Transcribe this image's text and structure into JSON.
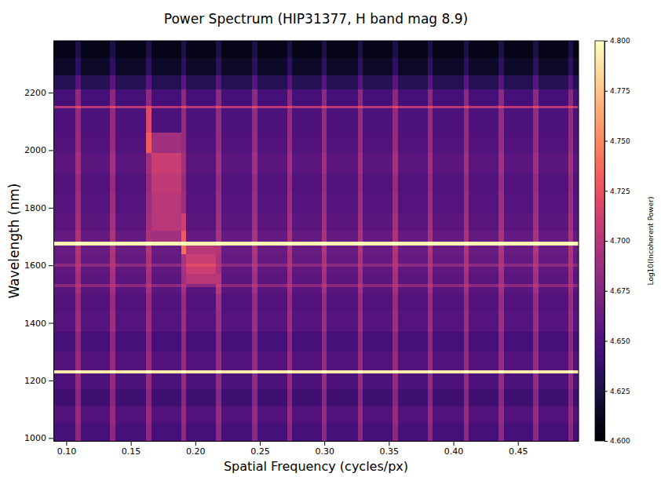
{
  "chart_data": {
    "type": "heatmap",
    "title": "Power Spectrum (HIP31377, H band mag 8.9)",
    "x_label": "Spatial Frequency (cycles/px)",
    "y_label": "Wavelength (nm)",
    "color": "magma",
    "grid": false,
    "xlim": [
      0.09,
      0.497
    ],
    "ylim": [
      990,
      2380
    ],
    "xticks": [
      {
        "value": 0.1,
        "label": "0.10"
      },
      0.15,
      {
        "value": 0.2,
        "label": "0.20"
      },
      0.25,
      {
        "value": 0.3,
        "label": "0.30"
      },
      0.35,
      {
        "value": 0.4,
        "label": "0.40"
      },
      0.45
    ],
    "yticks": [
      1000,
      1200,
      1400,
      1600,
      1800,
      2000,
      2200
    ],
    "x_edges": [
      0.09,
      0.107,
      0.111,
      0.134,
      0.138,
      0.162,
      0.166,
      0.189,
      0.193,
      0.216,
      0.22,
      0.244,
      0.248,
      0.271,
      0.275,
      0.298,
      0.302,
      0.326,
      0.33,
      0.353,
      0.357,
      0.38,
      0.384,
      0.408,
      0.412,
      0.435,
      0.439,
      0.462,
      0.466,
      0.489,
      0.493,
      0.497
    ],
    "y_edges": [
      990,
      1050,
      1110,
      1170,
      1225,
      1235,
      1300,
      1370,
      1440,
      1500,
      1525,
      1535,
      1570,
      1595,
      1605,
      1640,
      1668,
      1682,
      1720,
      1780,
      1850,
      1920,
      1990,
      2060,
      2145,
      2155,
      2210,
      2260,
      2320,
      2380
    ],
    "z": [
      [
        4.645,
        4.68,
        4.645,
        4.68,
        4.645,
        4.68,
        4.645,
        4.68,
        4.645,
        4.68,
        4.645,
        4.68,
        4.645,
        4.68,
        4.645,
        4.68,
        4.645,
        4.68,
        4.645,
        4.68,
        4.645,
        4.68,
        4.645,
        4.68,
        4.645,
        4.68,
        4.645,
        4.68,
        4.645,
        4.68,
        4.645
      ],
      [
        4.65,
        4.685,
        4.65,
        4.685,
        4.65,
        4.685,
        4.65,
        4.685,
        4.65,
        4.685,
        4.65,
        4.685,
        4.65,
        4.685,
        4.65,
        4.685,
        4.65,
        4.685,
        4.65,
        4.685,
        4.65,
        4.685,
        4.65,
        4.685,
        4.65,
        4.685,
        4.65,
        4.685,
        4.65,
        4.685,
        4.65
      ],
      [
        4.642,
        4.677,
        4.642,
        4.677,
        4.642,
        4.677,
        4.642,
        4.677,
        4.642,
        4.677,
        4.642,
        4.677,
        4.642,
        4.677,
        4.642,
        4.677,
        4.642,
        4.677,
        4.642,
        4.677,
        4.642,
        4.677,
        4.642,
        4.677,
        4.642,
        4.677,
        4.642,
        4.677,
        4.642,
        4.677,
        4.642
      ],
      [
        4.648,
        4.683,
        4.648,
        4.683,
        4.648,
        4.683,
        4.648,
        4.683,
        4.648,
        4.683,
        4.648,
        4.683,
        4.648,
        4.683,
        4.648,
        4.683,
        4.648,
        4.683,
        4.648,
        4.683,
        4.648,
        4.683,
        4.648,
        4.683,
        4.648,
        4.683,
        4.648,
        4.683,
        4.648,
        4.683,
        4.648
      ],
      [
        4.79,
        4.8,
        4.79,
        4.8,
        4.79,
        4.8,
        4.79,
        4.8,
        4.79,
        4.8,
        4.79,
        4.8,
        4.79,
        4.8,
        4.79,
        4.8,
        4.79,
        4.8,
        4.79,
        4.8,
        4.79,
        4.8,
        4.79,
        4.8,
        4.79,
        4.8,
        4.79,
        4.8,
        4.79,
        4.8,
        4.79
      ],
      [
        4.65,
        4.685,
        4.65,
        4.685,
        4.65,
        4.685,
        4.65,
        4.685,
        4.65,
        4.685,
        4.65,
        4.685,
        4.65,
        4.685,
        4.65,
        4.685,
        4.65,
        4.685,
        4.65,
        4.685,
        4.65,
        4.685,
        4.65,
        4.685,
        4.65,
        4.685,
        4.65,
        4.685,
        4.65,
        4.685,
        4.65
      ],
      [
        4.645,
        4.68,
        4.645,
        4.68,
        4.645,
        4.68,
        4.645,
        4.68,
        4.645,
        4.68,
        4.645,
        4.68,
        4.645,
        4.68,
        4.645,
        4.68,
        4.645,
        4.68,
        4.645,
        4.68,
        4.645,
        4.68,
        4.645,
        4.68,
        4.645,
        4.68,
        4.645,
        4.68,
        4.645,
        4.68,
        4.645
      ],
      [
        4.652,
        4.687,
        4.652,
        4.687,
        4.652,
        4.687,
        4.652,
        4.687,
        4.652,
        4.687,
        4.652,
        4.687,
        4.652,
        4.687,
        4.652,
        4.687,
        4.652,
        4.687,
        4.652,
        4.687,
        4.652,
        4.687,
        4.652,
        4.687,
        4.652,
        4.687,
        4.652,
        4.687,
        4.652,
        4.687,
        4.652
      ],
      [
        4.65,
        4.685,
        4.65,
        4.685,
        4.65,
        4.685,
        4.65,
        4.685,
        4.65,
        4.69,
        4.65,
        4.685,
        4.65,
        4.685,
        4.65,
        4.685,
        4.65,
        4.685,
        4.65,
        4.685,
        4.65,
        4.685,
        4.65,
        4.685,
        4.65,
        4.685,
        4.65,
        4.685,
        4.65,
        4.685,
        4.65
      ],
      [
        4.655,
        4.69,
        4.655,
        4.69,
        4.655,
        4.69,
        4.655,
        4.69,
        4.655,
        4.7,
        4.655,
        4.69,
        4.655,
        4.69,
        4.655,
        4.69,
        4.655,
        4.69,
        4.655,
        4.69,
        4.655,
        4.69,
        4.655,
        4.69,
        4.655,
        4.69,
        4.655,
        4.69,
        4.655,
        4.69,
        4.655
      ],
      [
        4.68,
        4.7,
        4.68,
        4.7,
        4.68,
        4.7,
        4.68,
        4.7,
        4.68,
        4.71,
        4.68,
        4.7,
        4.68,
        4.7,
        4.68,
        4.7,
        4.68,
        4.7,
        4.68,
        4.7,
        4.68,
        4.7,
        4.68,
        4.7,
        4.68,
        4.7,
        4.68,
        4.7,
        4.68,
        4.7,
        4.68
      ],
      [
        4.655,
        4.69,
        4.655,
        4.69,
        4.655,
        4.69,
        4.655,
        4.69,
        4.7,
        4.7,
        4.655,
        4.69,
        4.655,
        4.69,
        4.655,
        4.69,
        4.655,
        4.69,
        4.655,
        4.69,
        4.655,
        4.69,
        4.655,
        4.69,
        4.655,
        4.69,
        4.655,
        4.69,
        4.655,
        4.69,
        4.655
      ],
      [
        4.658,
        4.693,
        4.658,
        4.693,
        4.658,
        4.693,
        4.658,
        4.693,
        4.71,
        4.693,
        4.658,
        4.693,
        4.658,
        4.693,
        4.658,
        4.693,
        4.658,
        4.693,
        4.658,
        4.693,
        4.658,
        4.693,
        4.658,
        4.693,
        4.658,
        4.693,
        4.658,
        4.693,
        4.658,
        4.693,
        4.658
      ],
      [
        4.68,
        4.7,
        4.68,
        4.7,
        4.68,
        4.7,
        4.68,
        4.7,
        4.72,
        4.7,
        4.68,
        4.7,
        4.68,
        4.7,
        4.68,
        4.7,
        4.68,
        4.7,
        4.68,
        4.7,
        4.68,
        4.7,
        4.68,
        4.7,
        4.68,
        4.7,
        4.68,
        4.7,
        4.68,
        4.7,
        4.68
      ],
      [
        4.66,
        4.695,
        4.66,
        4.695,
        4.66,
        4.695,
        4.66,
        4.695,
        4.71,
        4.695,
        4.66,
        4.695,
        4.66,
        4.695,
        4.66,
        4.695,
        4.66,
        4.695,
        4.66,
        4.695,
        4.66,
        4.695,
        4.66,
        4.695,
        4.66,
        4.695,
        4.66,
        4.695,
        4.66,
        4.695,
        4.66
      ],
      [
        4.662,
        4.697,
        4.662,
        4.697,
        4.662,
        4.697,
        4.662,
        4.74,
        4.7,
        4.697,
        4.662,
        4.697,
        4.662,
        4.697,
        4.662,
        4.697,
        4.662,
        4.697,
        4.662,
        4.697,
        4.662,
        4.697,
        4.662,
        4.697,
        4.662,
        4.697,
        4.662,
        4.697,
        4.662,
        4.697,
        4.662
      ],
      [
        4.795,
        4.8,
        4.795,
        4.8,
        4.795,
        4.8,
        4.795,
        4.8,
        4.795,
        4.8,
        4.795,
        4.8,
        4.795,
        4.8,
        4.795,
        4.8,
        4.795,
        4.8,
        4.795,
        4.8,
        4.795,
        4.8,
        4.795,
        4.8,
        4.795,
        4.8,
        4.795,
        4.8,
        4.795,
        4.8,
        4.795
      ],
      [
        4.66,
        4.695,
        4.66,
        4.695,
        4.66,
        4.695,
        4.69,
        4.73,
        4.66,
        4.695,
        4.66,
        4.695,
        4.66,
        4.695,
        4.66,
        4.695,
        4.66,
        4.695,
        4.66,
        4.695,
        4.66,
        4.695,
        4.66,
        4.695,
        4.66,
        4.695,
        4.66,
        4.695,
        4.66,
        4.695,
        4.66
      ],
      [
        4.655,
        4.69,
        4.655,
        4.69,
        4.655,
        4.69,
        4.7,
        4.71,
        4.655,
        4.69,
        4.655,
        4.69,
        4.655,
        4.69,
        4.655,
        4.69,
        4.655,
        4.69,
        4.655,
        4.69,
        4.655,
        4.69,
        4.655,
        4.69,
        4.655,
        4.69,
        4.655,
        4.69,
        4.655,
        4.69,
        4.655
      ],
      [
        4.652,
        4.687,
        4.652,
        4.687,
        4.652,
        4.687,
        4.7,
        4.687,
        4.652,
        4.687,
        4.652,
        4.687,
        4.652,
        4.687,
        4.652,
        4.687,
        4.652,
        4.687,
        4.652,
        4.687,
        4.652,
        4.687,
        4.652,
        4.687,
        4.652,
        4.687,
        4.652,
        4.687,
        4.652,
        4.687,
        4.652
      ],
      [
        4.65,
        4.685,
        4.65,
        4.685,
        4.65,
        4.685,
        4.705,
        4.685,
        4.65,
        4.685,
        4.65,
        4.685,
        4.65,
        4.685,
        4.65,
        4.685,
        4.65,
        4.685,
        4.65,
        4.685,
        4.65,
        4.685,
        4.65,
        4.685,
        4.65,
        4.685,
        4.65,
        4.685,
        4.65,
        4.685,
        4.65
      ],
      [
        4.655,
        4.69,
        4.655,
        4.69,
        4.655,
        4.69,
        4.71,
        4.69,
        4.655,
        4.69,
        4.655,
        4.69,
        4.655,
        4.69,
        4.655,
        4.69,
        4.655,
        4.69,
        4.655,
        4.69,
        4.655,
        4.69,
        4.655,
        4.69,
        4.655,
        4.69,
        4.655,
        4.69,
        4.655,
        4.69,
        4.655
      ],
      [
        4.65,
        4.685,
        4.65,
        4.685,
        4.65,
        4.73,
        4.69,
        4.685,
        4.65,
        4.685,
        4.65,
        4.685,
        4.65,
        4.685,
        4.65,
        4.685,
        4.65,
        4.685,
        4.65,
        4.685,
        4.65,
        4.685,
        4.65,
        4.685,
        4.65,
        4.685,
        4.65,
        4.685,
        4.65,
        4.685,
        4.65
      ],
      [
        4.648,
        4.683,
        4.648,
        4.683,
        4.648,
        4.72,
        4.648,
        4.683,
        4.648,
        4.683,
        4.648,
        4.683,
        4.648,
        4.683,
        4.648,
        4.683,
        4.648,
        4.683,
        4.648,
        4.683,
        4.648,
        4.683,
        4.648,
        4.683,
        4.648,
        4.683,
        4.648,
        4.683,
        4.648,
        4.683,
        4.648
      ],
      [
        4.7,
        4.72,
        4.7,
        4.72,
        4.7,
        4.72,
        4.7,
        4.72,
        4.7,
        4.72,
        4.7,
        4.72,
        4.7,
        4.72,
        4.7,
        4.72,
        4.7,
        4.72,
        4.7,
        4.72,
        4.7,
        4.72,
        4.7,
        4.72,
        4.7,
        4.72,
        4.7,
        4.72,
        4.7,
        4.72,
        4.7
      ],
      [
        4.645,
        4.68,
        4.645,
        4.68,
        4.645,
        4.68,
        4.645,
        4.68,
        4.645,
        4.68,
        4.645,
        4.68,
        4.645,
        4.68,
        4.645,
        4.68,
        4.645,
        4.68,
        4.645,
        4.68,
        4.645,
        4.68,
        4.645,
        4.68,
        4.645,
        4.68,
        4.645,
        4.68,
        4.645,
        4.68,
        4.645
      ],
      [
        4.63,
        4.655,
        4.63,
        4.655,
        4.63,
        4.655,
        4.63,
        4.655,
        4.63,
        4.655,
        4.63,
        4.655,
        4.63,
        4.655,
        4.63,
        4.655,
        4.63,
        4.655,
        4.63,
        4.655,
        4.63,
        4.655,
        4.63,
        4.655,
        4.63,
        4.655,
        4.63,
        4.655,
        4.63,
        4.655,
        4.63
      ],
      [
        4.615,
        4.635,
        4.615,
        4.635,
        4.615,
        4.635,
        4.615,
        4.635,
        4.615,
        4.635,
        4.615,
        4.635,
        4.615,
        4.635,
        4.615,
        4.635,
        4.615,
        4.635,
        4.615,
        4.635,
        4.615,
        4.635,
        4.615,
        4.635,
        4.615,
        4.635,
        4.615,
        4.635,
        4.615,
        4.635,
        4.615
      ],
      [
        4.61,
        4.625,
        4.61,
        4.625,
        4.61,
        4.625,
        4.61,
        4.625,
        4.61,
        4.625,
        4.61,
        4.625,
        4.61,
        4.625,
        4.61,
        4.625,
        4.61,
        4.625,
        4.61,
        4.625,
        4.61,
        4.625,
        4.61,
        4.625,
        4.61,
        4.625,
        4.61,
        4.625,
        4.61,
        4.625,
        4.61
      ]
    ],
    "colorbar": {
      "label": "Log10(Incoherent Power)",
      "range": [
        4.6,
        4.8
      ],
      "ticks": [
        {
          "value": 4.6,
          "label": "4.600"
        },
        4.625,
        {
          "value": 4.65,
          "label": "4.650"
        },
        4.675,
        {
          "value": 4.7,
          "label": "4.700"
        },
        4.725,
        {
          "value": 4.75,
          "label": "4.750"
        },
        4.775,
        {
          "value": 4.8,
          "label": "4.800"
        }
      ]
    }
  }
}
